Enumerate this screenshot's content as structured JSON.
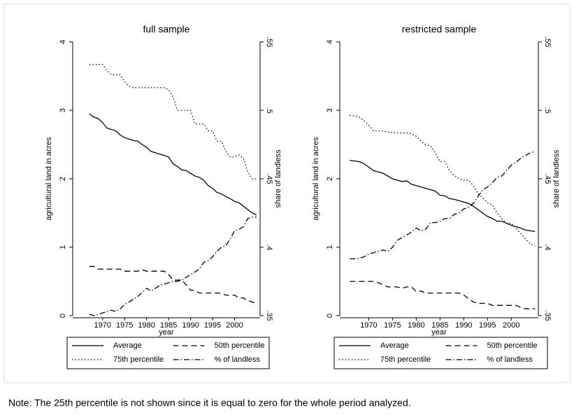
{
  "chart_data": [
    {
      "type": "line",
      "title": "full sample",
      "xlabel": "year",
      "ylabel": "agricultural land in acres",
      "y2label": "share of landless",
      "x": [
        1967,
        1968,
        1969,
        1970,
        1971,
        1972,
        1973,
        1974,
        1975,
        1976,
        1977,
        1978,
        1979,
        1980,
        1981,
        1982,
        1983,
        1984,
        1985,
        1986,
        1987,
        1988,
        1989,
        1990,
        1991,
        1992,
        1993,
        1994,
        1995,
        1996,
        1997,
        1998,
        1999,
        2000,
        2001,
        2002,
        2003,
        2004,
        2005
      ],
      "xlim": [
        1963.2,
        2005.8
      ],
      "xticks": [
        1970,
        1975,
        1980,
        1985,
        1990,
        1995,
        2000
      ],
      "ylim": [
        0,
        4
      ],
      "yticks": [
        0,
        1,
        2,
        3,
        4
      ],
      "y2lim": [
        0.35,
        0.55
      ],
      "y2ticks": [
        {
          "value": 0.35,
          "label": ".35"
        },
        {
          "value": 0.4,
          "label": ".4"
        },
        {
          "value": 0.45,
          "label": ".45"
        },
        {
          "value": 0.5,
          "label": ".5"
        },
        {
          "value": 0.55,
          "label": ".55"
        }
      ],
      "series": [
        {
          "name": "Average",
          "color": "#000000",
          "style": "solid",
          "values": [
            2.95,
            2.9,
            2.88,
            2.82,
            2.74,
            2.72,
            2.7,
            2.64,
            2.6,
            2.58,
            2.56,
            2.55,
            2.5,
            2.46,
            2.4,
            2.38,
            2.36,
            2.34,
            2.32,
            2.22,
            2.18,
            2.13,
            2.12,
            2.08,
            2.04,
            2.02,
            1.98,
            1.9,
            1.86,
            1.8,
            1.78,
            1.74,
            1.71,
            1.67,
            1.65,
            1.6,
            1.55,
            1.5,
            1.47
          ]
        },
        {
          "name": "50th percentile",
          "color": "#000000",
          "style": "dash",
          "values": [
            0.72,
            0.72,
            0.68,
            0.68,
            0.68,
            0.68,
            0.68,
            0.68,
            0.65,
            0.65,
            0.65,
            0.65,
            0.67,
            0.65,
            0.65,
            0.65,
            0.65,
            0.65,
            0.6,
            0.52,
            0.52,
            0.52,
            0.45,
            0.37,
            0.37,
            0.33,
            0.33,
            0.33,
            0.33,
            0.33,
            0.33,
            0.3,
            0.3,
            0.3,
            0.26,
            0.26,
            0.22,
            0.2,
            0.18
          ]
        },
        {
          "name": "75th percentile",
          "color": "#000000",
          "style": "dot",
          "values": [
            3.67,
            3.67,
            3.67,
            3.67,
            3.58,
            3.52,
            3.52,
            3.52,
            3.42,
            3.35,
            3.33,
            3.33,
            3.33,
            3.33,
            3.33,
            3.33,
            3.33,
            3.33,
            3.3,
            3.2,
            3.0,
            3.0,
            3.0,
            3.0,
            2.8,
            2.8,
            2.8,
            2.7,
            2.7,
            2.55,
            2.55,
            2.4,
            2.32,
            2.32,
            2.35,
            2.3,
            2.1,
            2.0,
            2.0
          ]
        },
        {
          "name": "% of landless",
          "color": "#000000",
          "style": "dashdot",
          "axis": "y2",
          "values": [
            0.351,
            0.35,
            0.351,
            0.352,
            0.353,
            0.354,
            0.353,
            0.355,
            0.358,
            0.36,
            0.362,
            0.364,
            0.367,
            0.37,
            0.368,
            0.37,
            0.372,
            0.373,
            0.374,
            0.375,
            0.375,
            0.376,
            0.378,
            0.38,
            0.382,
            0.384,
            0.389,
            0.39,
            0.393,
            0.397,
            0.4,
            0.401,
            0.406,
            0.412,
            0.413,
            0.415,
            0.421,
            0.422,
            0.422
          ]
        }
      ]
    },
    {
      "type": "line",
      "title": "restricted sample",
      "xlabel": "year",
      "ylabel": "agricultural land in acres",
      "y2label": "share of landless",
      "x": [
        1966,
        1967,
        1968,
        1969,
        1970,
        1971,
        1972,
        1973,
        1974,
        1975,
        1976,
        1977,
        1978,
        1979,
        1980,
        1981,
        1982,
        1983,
        1984,
        1985,
        1986,
        1987,
        1988,
        1989,
        1990,
        1991,
        1992,
        1993,
        1994,
        1995,
        1996,
        1997,
        1998,
        1999,
        2000,
        2001,
        2002,
        2003,
        2004,
        2005
      ],
      "xlim": [
        1963.9,
        2005.7
      ],
      "xticks": [
        1970,
        1975,
        1980,
        1985,
        1990,
        1995,
        2000
      ],
      "ylim": [
        0,
        4
      ],
      "yticks": [
        0,
        1,
        2,
        3,
        4
      ],
      "y2lim": [
        0.35,
        0.55
      ],
      "y2ticks": [
        {
          "value": 0.35,
          "label": ".35"
        },
        {
          "value": 0.4,
          "label": ".4"
        },
        {
          "value": 0.45,
          "label": ".45"
        },
        {
          "value": 0.5,
          "label": ".5"
        },
        {
          "value": 0.55,
          "label": ".55"
        }
      ],
      "series": [
        {
          "name": "Average",
          "color": "#000000",
          "style": "solid",
          "values": [
            2.27,
            2.26,
            2.25,
            2.22,
            2.17,
            2.12,
            2.1,
            2.08,
            2.04,
            2.0,
            1.98,
            1.96,
            1.97,
            1.92,
            1.9,
            1.88,
            1.86,
            1.84,
            1.82,
            1.76,
            1.75,
            1.71,
            1.7,
            1.68,
            1.66,
            1.64,
            1.6,
            1.55,
            1.5,
            1.45,
            1.42,
            1.38,
            1.38,
            1.35,
            1.32,
            1.3,
            1.28,
            1.25,
            1.24,
            1.23
          ]
        },
        {
          "name": "50th percentile",
          "color": "#000000",
          "style": "dash",
          "values": [
            0.5,
            0.5,
            0.5,
            0.5,
            0.5,
            0.5,
            0.48,
            0.45,
            0.42,
            0.42,
            0.42,
            0.4,
            0.42,
            0.42,
            0.35,
            0.36,
            0.33,
            0.33,
            0.33,
            0.33,
            0.33,
            0.33,
            0.33,
            0.33,
            0.3,
            0.25,
            0.2,
            0.18,
            0.18,
            0.18,
            0.15,
            0.15,
            0.15,
            0.15,
            0.15,
            0.15,
            0.12,
            0.1,
            0.1,
            0.1
          ]
        },
        {
          "name": "75th percentile",
          "color": "#000000",
          "style": "dot",
          "values": [
            2.93,
            2.92,
            2.9,
            2.85,
            2.78,
            2.7,
            2.7,
            2.7,
            2.68,
            2.68,
            2.67,
            2.67,
            2.67,
            2.66,
            2.62,
            2.55,
            2.5,
            2.48,
            2.38,
            2.25,
            2.25,
            2.12,
            2.05,
            2.0,
            1.98,
            1.98,
            1.9,
            1.78,
            1.72,
            1.65,
            1.62,
            1.5,
            1.42,
            1.35,
            1.35,
            1.28,
            1.2,
            1.12,
            1.05,
            1.02
          ]
        },
        {
          "name": "% of landless",
          "color": "#000000",
          "style": "dashdot",
          "axis": "y2",
          "values": [
            0.3915,
            0.3915,
            0.392,
            0.393,
            0.395,
            0.396,
            0.397,
            0.398,
            0.397,
            0.4,
            0.405,
            0.407,
            0.409,
            0.411,
            0.414,
            0.412,
            0.413,
            0.418,
            0.418,
            0.419,
            0.421,
            0.421,
            0.424,
            0.425,
            0.428,
            0.429,
            0.432,
            0.437,
            0.442,
            0.444,
            0.447,
            0.451,
            0.452,
            0.456,
            0.46,
            0.462,
            0.465,
            0.467,
            0.469,
            0.47
          ]
        }
      ]
    }
  ],
  "note": "Note: The 25th percentile is not shown since it is equal to zero for the whole period analyzed."
}
